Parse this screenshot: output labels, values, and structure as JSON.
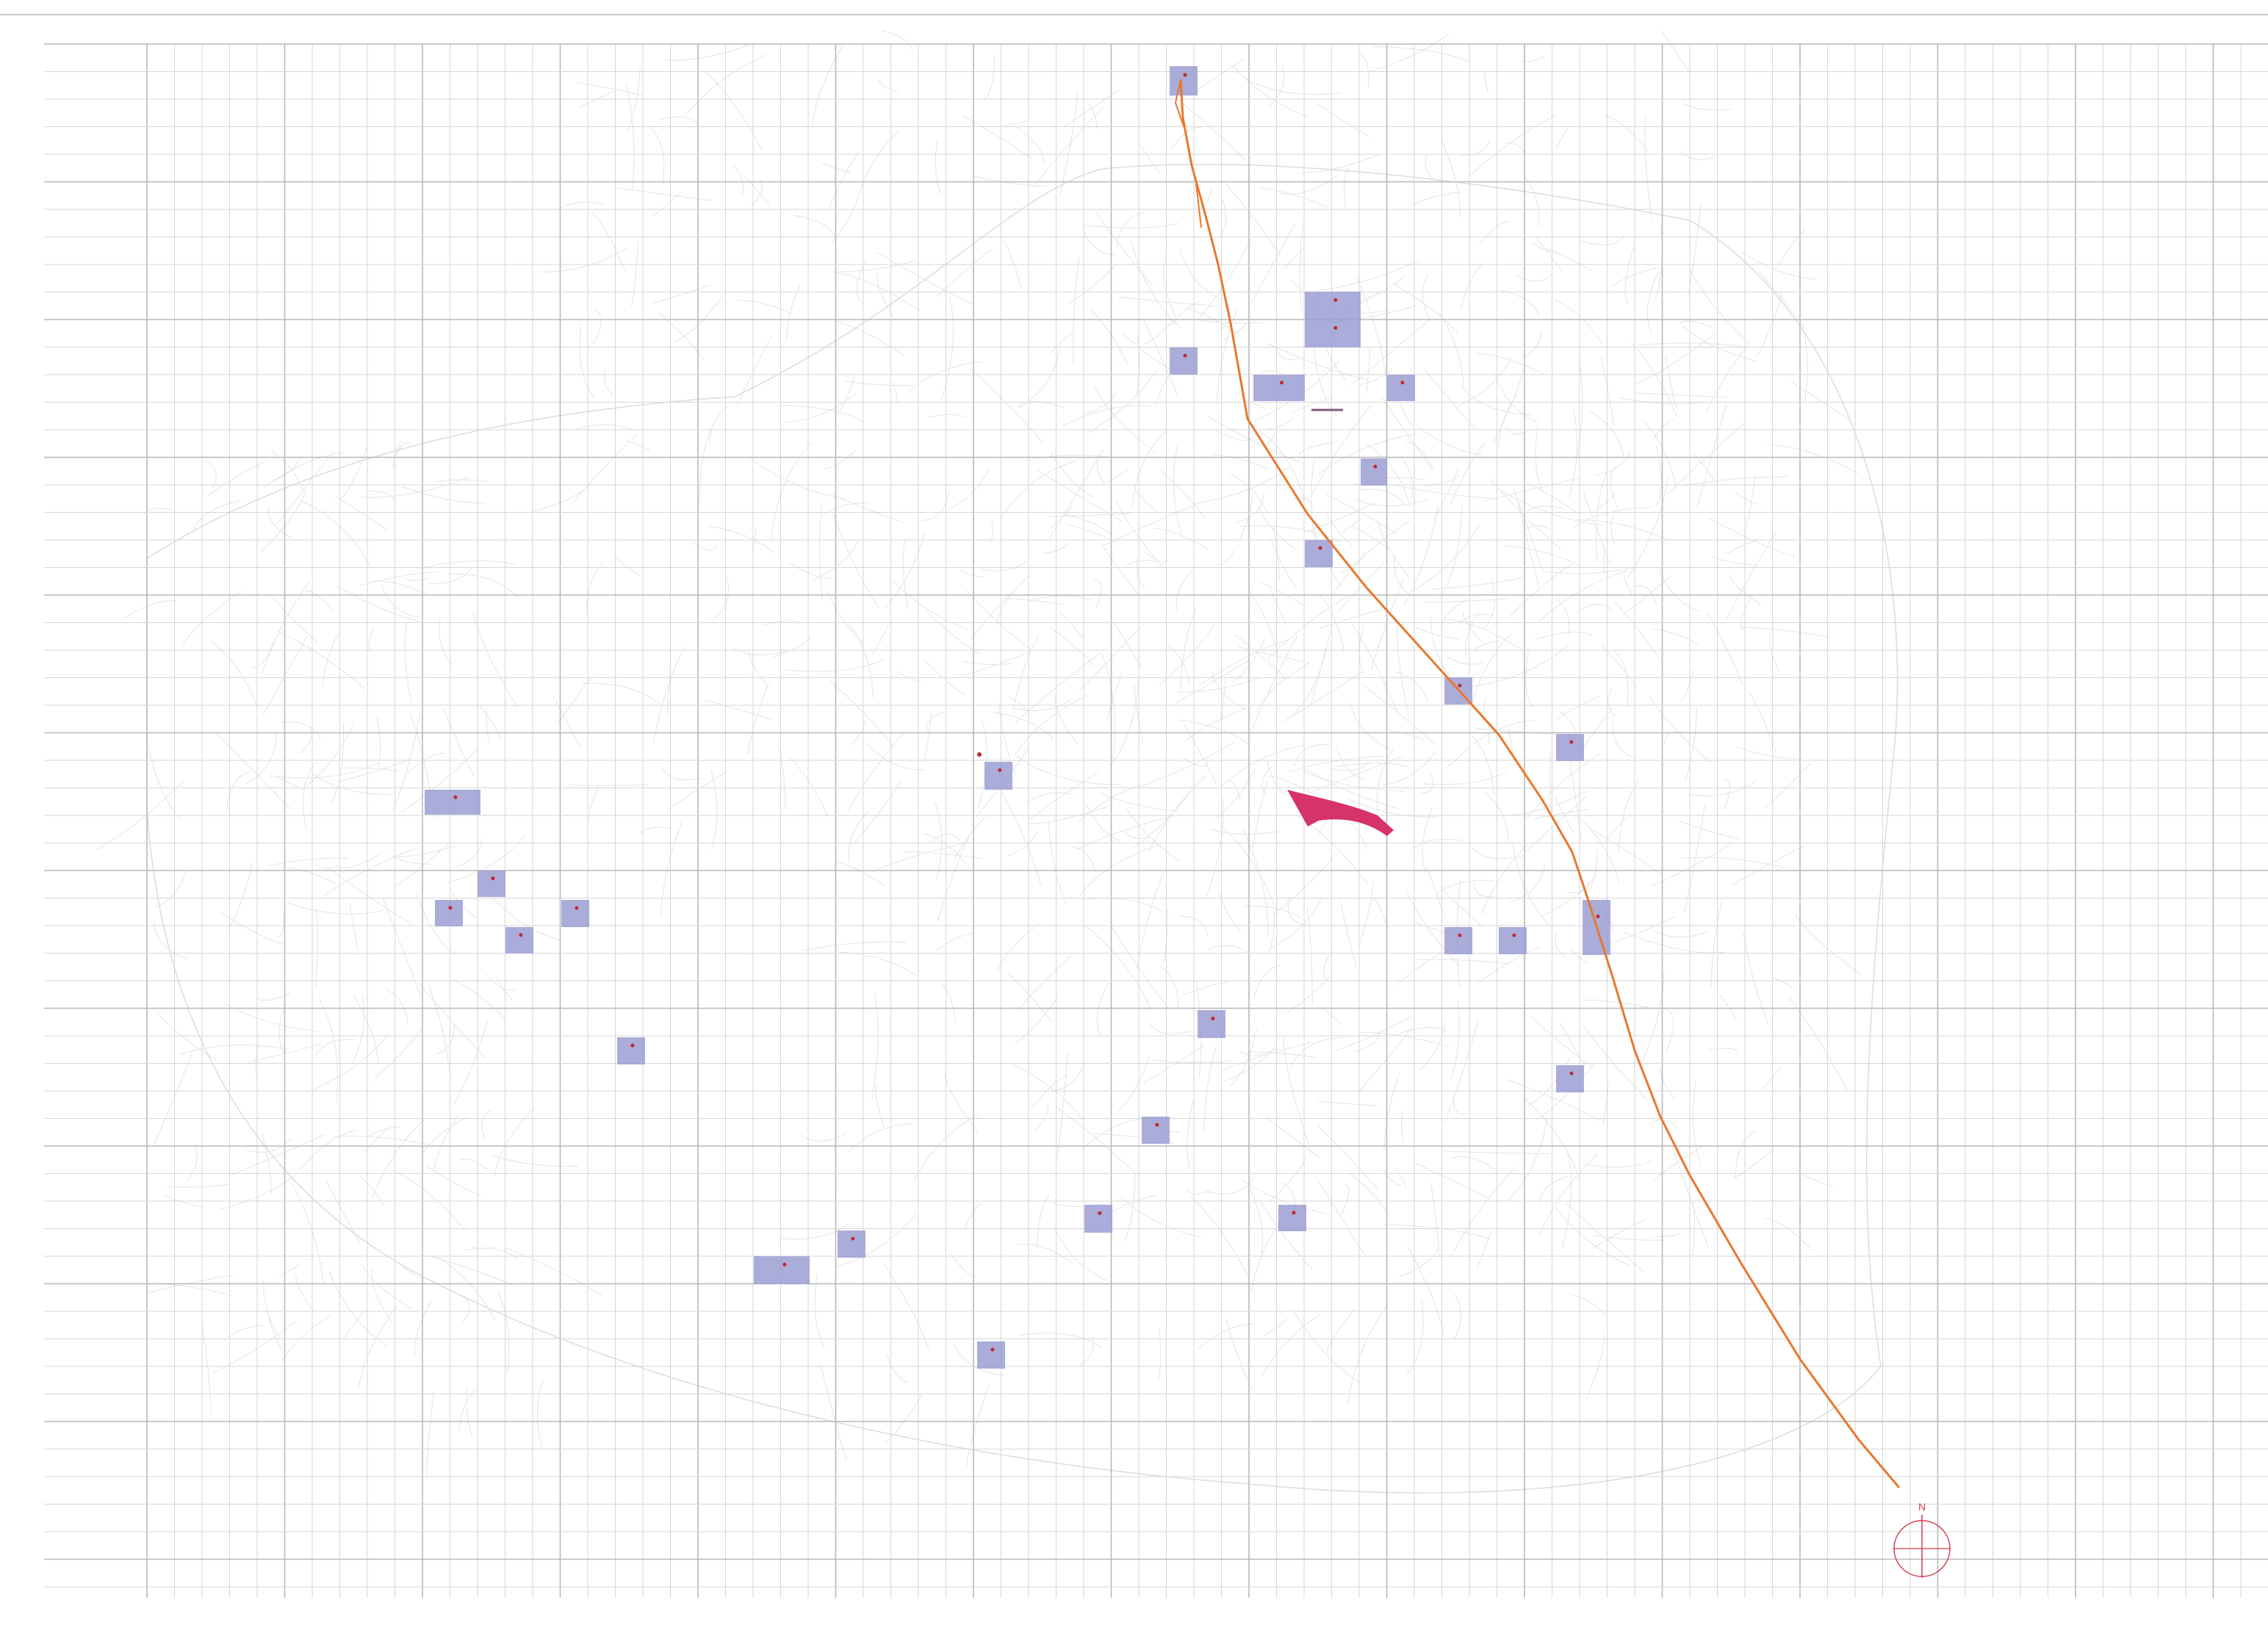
{
  "map": {
    "grid": {
      "visible": true,
      "line_color": "#b8b8b8",
      "minor_line_color": "#d6d6d6"
    },
    "basemap": {
      "style": "faint street network",
      "color": "#e4e4e4"
    },
    "highlighted_cells": {
      "fill_color": "#9b9fd4",
      "count": 38,
      "marker_color": "#c1272d"
    },
    "route_line": {
      "color": "#e8782e",
      "name_visible": false
    },
    "highlight_area": {
      "color": "#d6336c"
    },
    "north_arrow": {
      "label": "N",
      "color": "#d43b4f"
    }
  }
}
